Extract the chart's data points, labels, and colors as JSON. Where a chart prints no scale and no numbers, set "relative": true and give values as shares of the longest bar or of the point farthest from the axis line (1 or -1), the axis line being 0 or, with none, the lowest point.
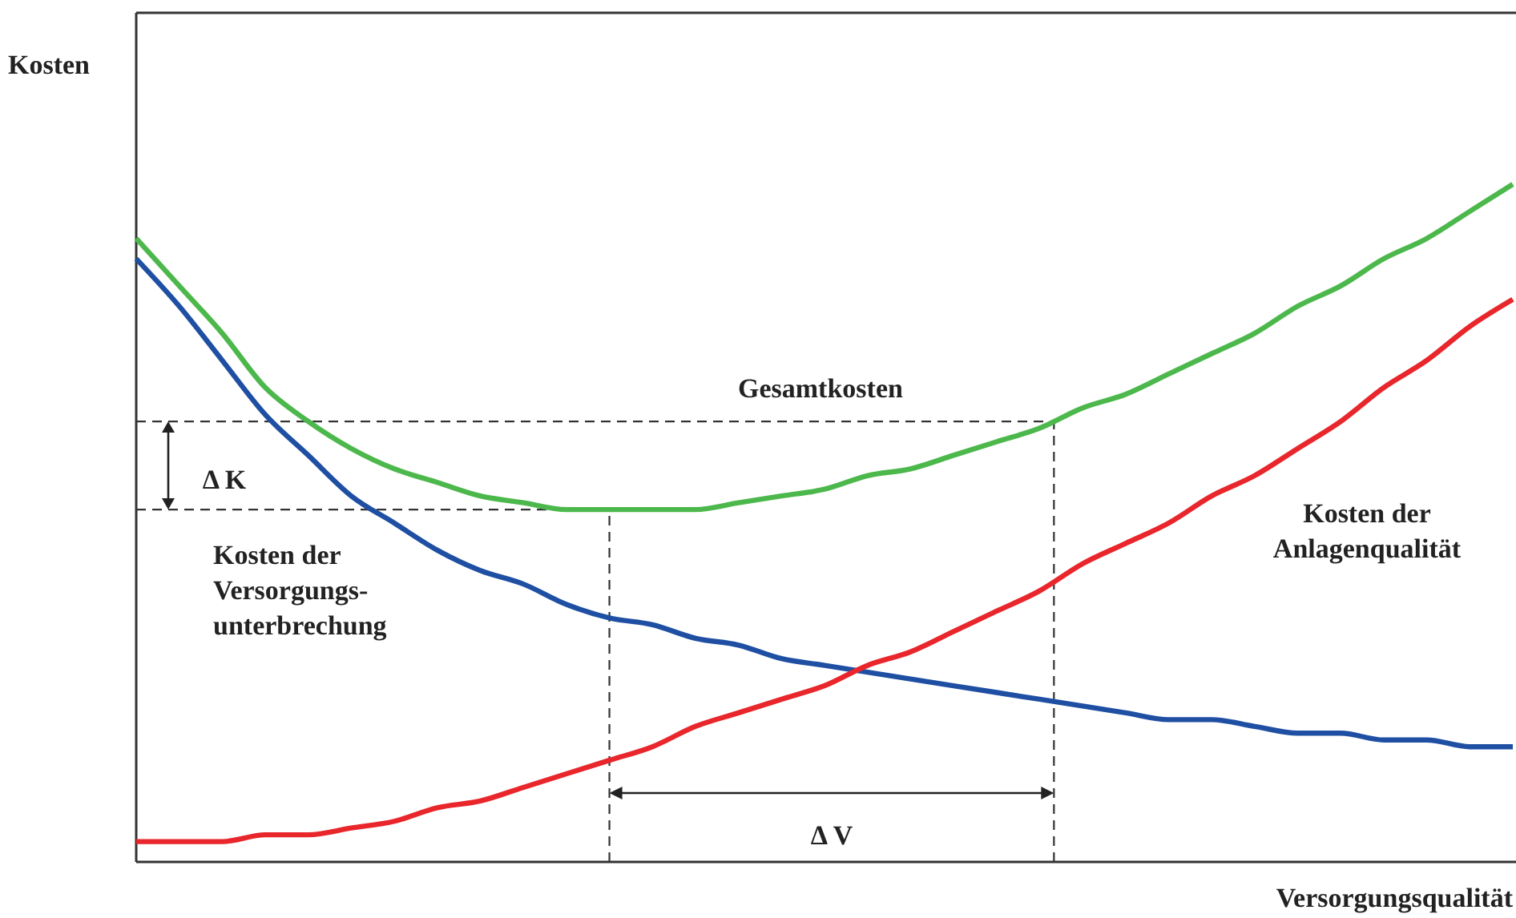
{
  "chart_data": {
    "type": "line",
    "relative": true,
    "ylabel": "Kosten",
    "xlabel": "Versorgungsqualität",
    "marker": "none",
    "line_style": "solid",
    "categories": [
      null,
      null,
      null,
      null,
      null,
      null,
      null,
      null,
      null,
      null,
      null,
      null,
      null,
      null,
      null,
      null,
      null,
      null,
      null,
      null,
      null,
      null,
      null,
      null,
      null,
      null,
      null,
      null,
      null,
      null,
      null,
      null,
      null
    ],
    "series": [
      {
        "name": "Gesamtkosten",
        "color": "#4cb84c",
        "values": [
          0.92,
          0.85,
          0.78,
          0.7,
          0.65,
          0.61,
          0.58,
          0.56,
          0.54,
          0.53,
          0.52,
          0.52,
          0.52,
          0.52,
          0.53,
          0.54,
          0.55,
          0.57,
          0.58,
          0.6,
          0.62,
          0.64,
          0.67,
          0.69,
          0.72,
          0.75,
          0.78,
          0.82,
          0.85,
          0.89,
          0.92,
          0.96,
          1
        ]
      },
      {
        "name": "Kosten der\nVersorgungs-\nunterbrechung",
        "color": "#1f4fa3",
        "values": [
          0.89,
          0.82,
          0.74,
          0.66,
          0.6,
          0.54,
          0.5,
          0.46,
          0.43,
          0.41,
          0.38,
          0.36,
          0.35,
          0.33,
          0.32,
          0.3,
          0.29,
          0.28,
          0.27,
          0.26,
          0.25,
          0.24,
          0.23,
          0.22,
          0.21,
          0.21,
          0.2,
          0.19,
          0.19,
          0.18,
          0.18,
          0.17,
          0.17
        ]
      },
      {
        "name": "Kosten der\nAnlagenqualität",
        "color": "#e8262b",
        "values": [
          0.03,
          0.03,
          0.03,
          0.04,
          0.04,
          0.05,
          0.06,
          0.08,
          0.09,
          0.11,
          0.13,
          0.15,
          0.17,
          0.2,
          0.22,
          0.24,
          0.26,
          0.29,
          0.31,
          0.34,
          0.37,
          0.4,
          0.44,
          0.47,
          0.5,
          0.54,
          0.57,
          0.61,
          0.65,
          0.7,
          0.74,
          0.79,
          0.83
        ]
      }
    ],
    "ref_lines": [
      {
        "axis": "y",
        "value": 0.52,
        "line_style": "dashed"
      },
      {
        "axis": "y",
        "value": 0.65,
        "line_style": "dashed"
      }
    ],
    "annotations": [
      "Δ K",
      "Δ V"
    ]
  }
}
